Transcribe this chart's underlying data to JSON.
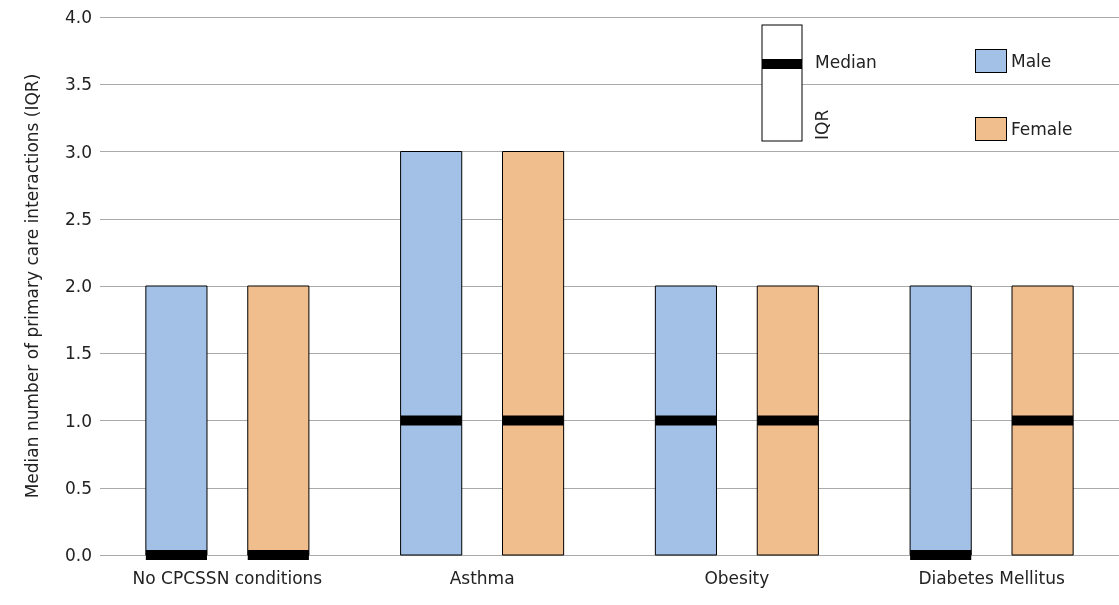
{
  "chart_data": {
    "type": "box",
    "ylabel": "Median number of primary care interactions (IQR)",
    "categories": [
      "No CPCSSN conditions",
      "Asthma",
      "Obesity",
      "Diabetes Mellitus"
    ],
    "series": [
      {
        "name": "Male",
        "color": "#a3c1e6",
        "boxes": [
          {
            "low": 0,
            "q1": 0,
            "median": 0,
            "q3": 2,
            "high": 2
          },
          {
            "low": 0,
            "q1": 0,
            "median": 1,
            "q3": 3,
            "high": 3
          },
          {
            "low": 0,
            "q1": 0,
            "median": 1,
            "q3": 2,
            "high": 2
          },
          {
            "low": 0,
            "q1": 0,
            "median": 0,
            "q3": 2,
            "high": 2
          }
        ]
      },
      {
        "name": "Female",
        "color": "#f0bd8c",
        "boxes": [
          {
            "low": 0,
            "q1": 0,
            "median": 0,
            "q3": 2,
            "high": 2
          },
          {
            "low": 0,
            "q1": 0,
            "median": 1,
            "q3": 3,
            "high": 3
          },
          {
            "low": 0,
            "q1": 0,
            "median": 1,
            "q3": 2,
            "high": 2
          },
          {
            "low": 0,
            "q1": 0,
            "median": 1,
            "q3": 2,
            "high": 2
          }
        ]
      }
    ],
    "ylim": [
      0,
      4
    ],
    "yticks": [
      {
        "value": 0,
        "label": "0.0"
      },
      {
        "value": 0.5,
        "label": "0.5"
      },
      {
        "value": 1,
        "label": "1.0"
      },
      {
        "value": 1.5,
        "label": "1.5"
      },
      {
        "value": 2,
        "label": "2.0"
      },
      {
        "value": 2.5,
        "label": "2.5"
      },
      {
        "value": 3,
        "label": "3.0"
      },
      {
        "value": 3.5,
        "label": "3.5"
      },
      {
        "value": 4,
        "label": "4.0"
      }
    ],
    "grid": "y",
    "legend": "top right",
    "annotations": [
      "Median",
      "IQR"
    ]
  }
}
